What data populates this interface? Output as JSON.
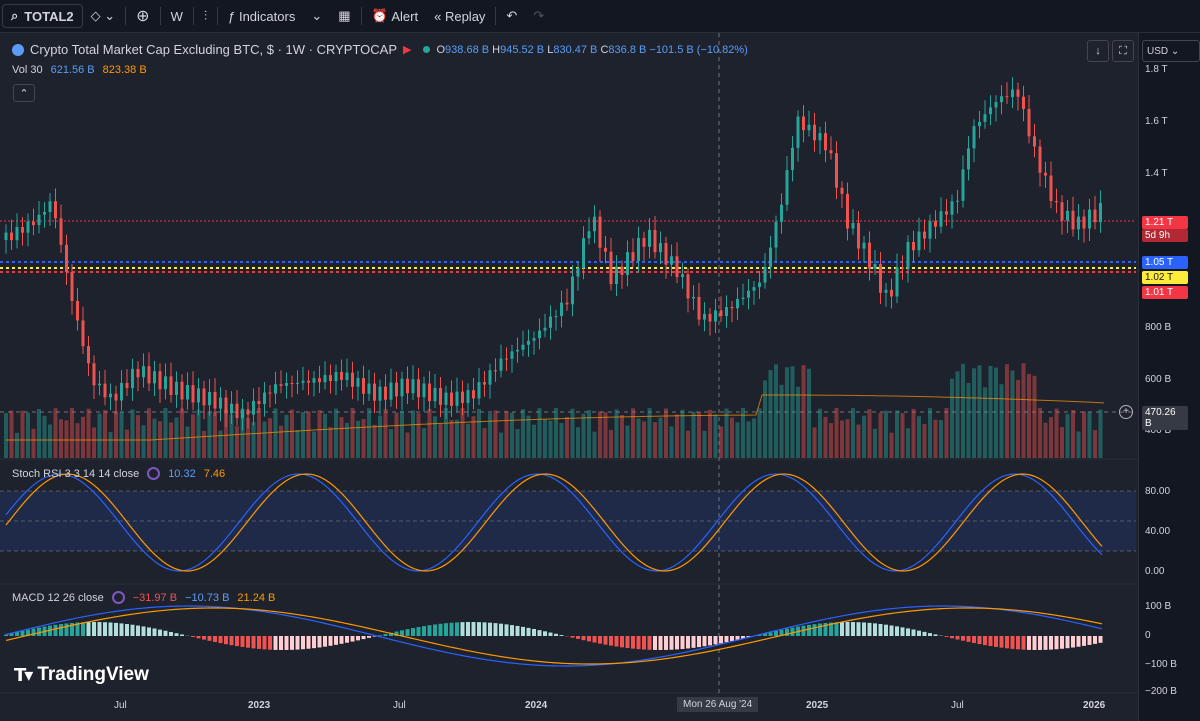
{
  "toolbar": {
    "symbol": "TOTAL2",
    "interval": "W",
    "indicators_label": "Indicators",
    "alert_label": "Alert",
    "replay_label": "Replay"
  },
  "legend": {
    "title": "Crypto Total Market Cap Excluding BTC, $ · 1W · CRYPTOCAP",
    "open_label": "O",
    "open": "938.68 B",
    "high_label": "H",
    "high": "945.52 B",
    "low_label": "L",
    "low": "830.47 B",
    "close_label": "C",
    "close": "836.8 B",
    "change": "−101.5 B (−10.82%)"
  },
  "volume": {
    "label": "Vol 30",
    "v1": "621.56 B",
    "v2": "823.38 B"
  },
  "stoch": {
    "label": "Stoch RSI 3 3 14 14 close",
    "k": "10.32",
    "d": "7.46"
  },
  "macd": {
    "label": "MACD 12 26 close",
    "hist": "−31.97 B",
    "macd": "−10.73 B",
    "signal": "21.24 B"
  },
  "currency": "USD",
  "price_axis": [
    "1.8 T",
    "1.6 T",
    "1.4 T",
    "800 B",
    "600 B",
    "400 B"
  ],
  "price_tags": {
    "last": "1.21 T",
    "countdown": "5d 9h",
    "blue": "1.05 T",
    "yellow": "1.02 T",
    "red": "1.01 T",
    "crosshair": "470.26 B"
  },
  "stoch_axis": [
    "80.00",
    "40.00",
    "0.00"
  ],
  "macd_axis": [
    "100 B",
    "0",
    "−100 B",
    "−200 B"
  ],
  "time_axis": [
    "Jul",
    "2023",
    "Jul",
    "2024",
    "Mon 26 Aug '24",
    "2025",
    "Jul",
    "2026"
  ],
  "brand": "TradingView",
  "colors": {
    "up": "#26a69a",
    "down": "#ef5350",
    "rsi_k": "#2962ff",
    "rsi_d": "#ff9800",
    "bg": "#1e222d"
  }
}
